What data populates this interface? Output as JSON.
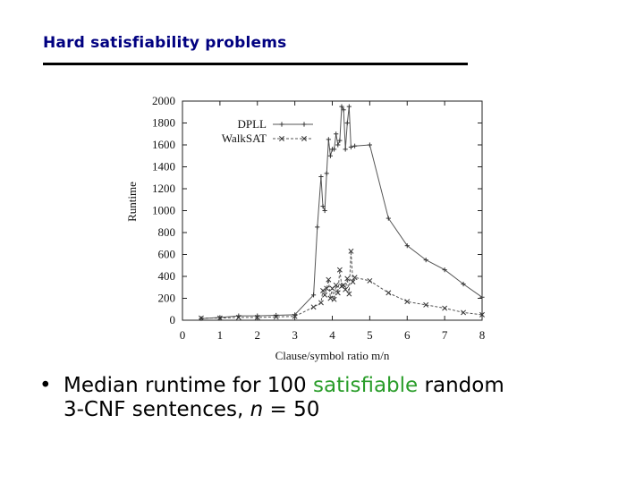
{
  "slide": {
    "title": "Hard satisfiability problems",
    "bullet": {
      "marker": "•",
      "text_part1": "Median runtime for 100 ",
      "highlight": "satisfiable",
      "highlight_color": "#2a9d2a",
      "text_part2": " random",
      "line2_part1": "3-CNF sentences, ",
      "line2_italic": "n",
      "line2_part2": " = 50"
    }
  },
  "chart_data": {
    "type": "line",
    "xlabel": "Clause/symbol ratio m/n",
    "ylabel": "Runtime",
    "xlim": [
      0,
      8
    ],
    "ylim": [
      0,
      2000
    ],
    "x_ticks": [
      0,
      1,
      2,
      3,
      4,
      5,
      6,
      7,
      8
    ],
    "y_ticks": [
      0,
      200,
      400,
      600,
      800,
      1000,
      1200,
      1400,
      1600,
      1800,
      2000
    ],
    "legend_position": "top-left",
    "grid": false,
    "series": [
      {
        "name": "DPLL",
        "style": "solid",
        "marker": "plus",
        "points": [
          [
            0.5,
            15
          ],
          [
            1.0,
            25
          ],
          [
            1.5,
            40
          ],
          [
            2.0,
            40
          ],
          [
            2.5,
            45
          ],
          [
            3.0,
            50
          ],
          [
            3.5,
            230
          ],
          [
            3.6,
            850
          ],
          [
            3.7,
            1310
          ],
          [
            3.75,
            1040
          ],
          [
            3.8,
            1000
          ],
          [
            3.85,
            1340
          ],
          [
            3.9,
            1650
          ],
          [
            3.95,
            1500
          ],
          [
            4.0,
            1560
          ],
          [
            4.05,
            1560
          ],
          [
            4.1,
            1700
          ],
          [
            4.15,
            1600
          ],
          [
            4.2,
            1640
          ],
          [
            4.25,
            1950
          ],
          [
            4.3,
            1920
          ],
          [
            4.35,
            1560
          ],
          [
            4.4,
            1800
          ],
          [
            4.45,
            1950
          ],
          [
            4.5,
            1580
          ],
          [
            4.6,
            1590
          ],
          [
            5.0,
            1600
          ],
          [
            5.5,
            930
          ],
          [
            6.0,
            680
          ],
          [
            6.5,
            550
          ],
          [
            7.0,
            460
          ],
          [
            7.5,
            330
          ],
          [
            8.0,
            210
          ]
        ]
      },
      {
        "name": "WalkSAT",
        "style": "dashed",
        "marker": "cross",
        "points": [
          [
            0.5,
            20
          ],
          [
            1.0,
            20
          ],
          [
            1.5,
            25
          ],
          [
            2.0,
            25
          ],
          [
            2.5,
            30
          ],
          [
            3.0,
            35
          ],
          [
            3.5,
            120
          ],
          [
            3.7,
            160
          ],
          [
            3.75,
            270
          ],
          [
            3.8,
            230
          ],
          [
            3.85,
            290
          ],
          [
            3.9,
            370
          ],
          [
            3.95,
            200
          ],
          [
            4.0,
            290
          ],
          [
            4.05,
            190
          ],
          [
            4.1,
            320
          ],
          [
            4.15,
            250
          ],
          [
            4.2,
            460
          ],
          [
            4.25,
            310
          ],
          [
            4.3,
            320
          ],
          [
            4.35,
            280
          ],
          [
            4.4,
            380
          ],
          [
            4.45,
            240
          ],
          [
            4.5,
            630
          ],
          [
            4.55,
            350
          ],
          [
            4.6,
            390
          ],
          [
            5.0,
            360
          ],
          [
            5.5,
            250
          ],
          [
            6.0,
            170
          ],
          [
            6.5,
            140
          ],
          [
            7.0,
            110
          ],
          [
            7.5,
            70
          ],
          [
            8.0,
            50
          ]
        ]
      }
    ]
  }
}
